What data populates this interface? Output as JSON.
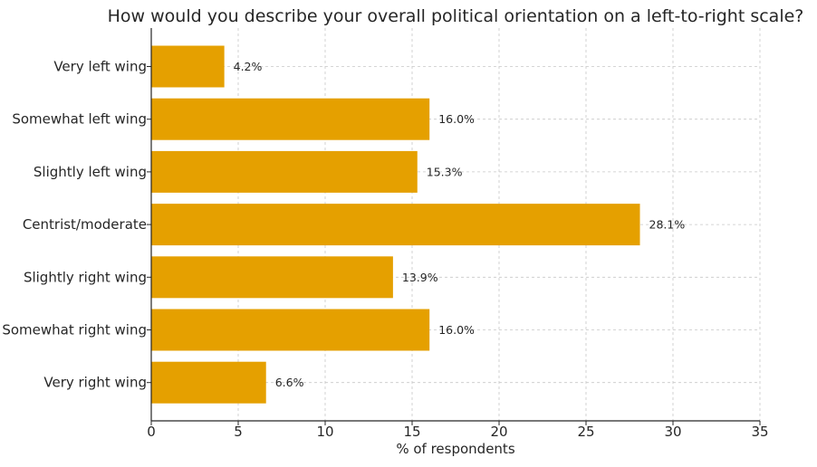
{
  "chart_data": {
    "type": "bar",
    "orientation": "horizontal",
    "title": "How would you describe your overall political orientation on a left-to-right scale?",
    "xlabel": "% of respondents",
    "ylabel": "",
    "xlim": [
      0,
      35
    ],
    "xticks": [
      0,
      5,
      10,
      15,
      20,
      25,
      30,
      35
    ],
    "grid": true,
    "bar_color": "#E5A000",
    "categories": [
      "Very left wing",
      "Somewhat left wing",
      "Slightly left wing",
      "Centrist/moderate",
      "Slightly right wing",
      "Somewhat right wing",
      "Very right wing"
    ],
    "values": [
      4.2,
      16.0,
      15.3,
      28.1,
      13.9,
      16.0,
      6.6
    ],
    "data_labels": [
      "4.2%",
      "16.0%",
      "15.3%",
      "28.1%",
      "13.9%",
      "16.0%",
      "6.6%"
    ]
  }
}
